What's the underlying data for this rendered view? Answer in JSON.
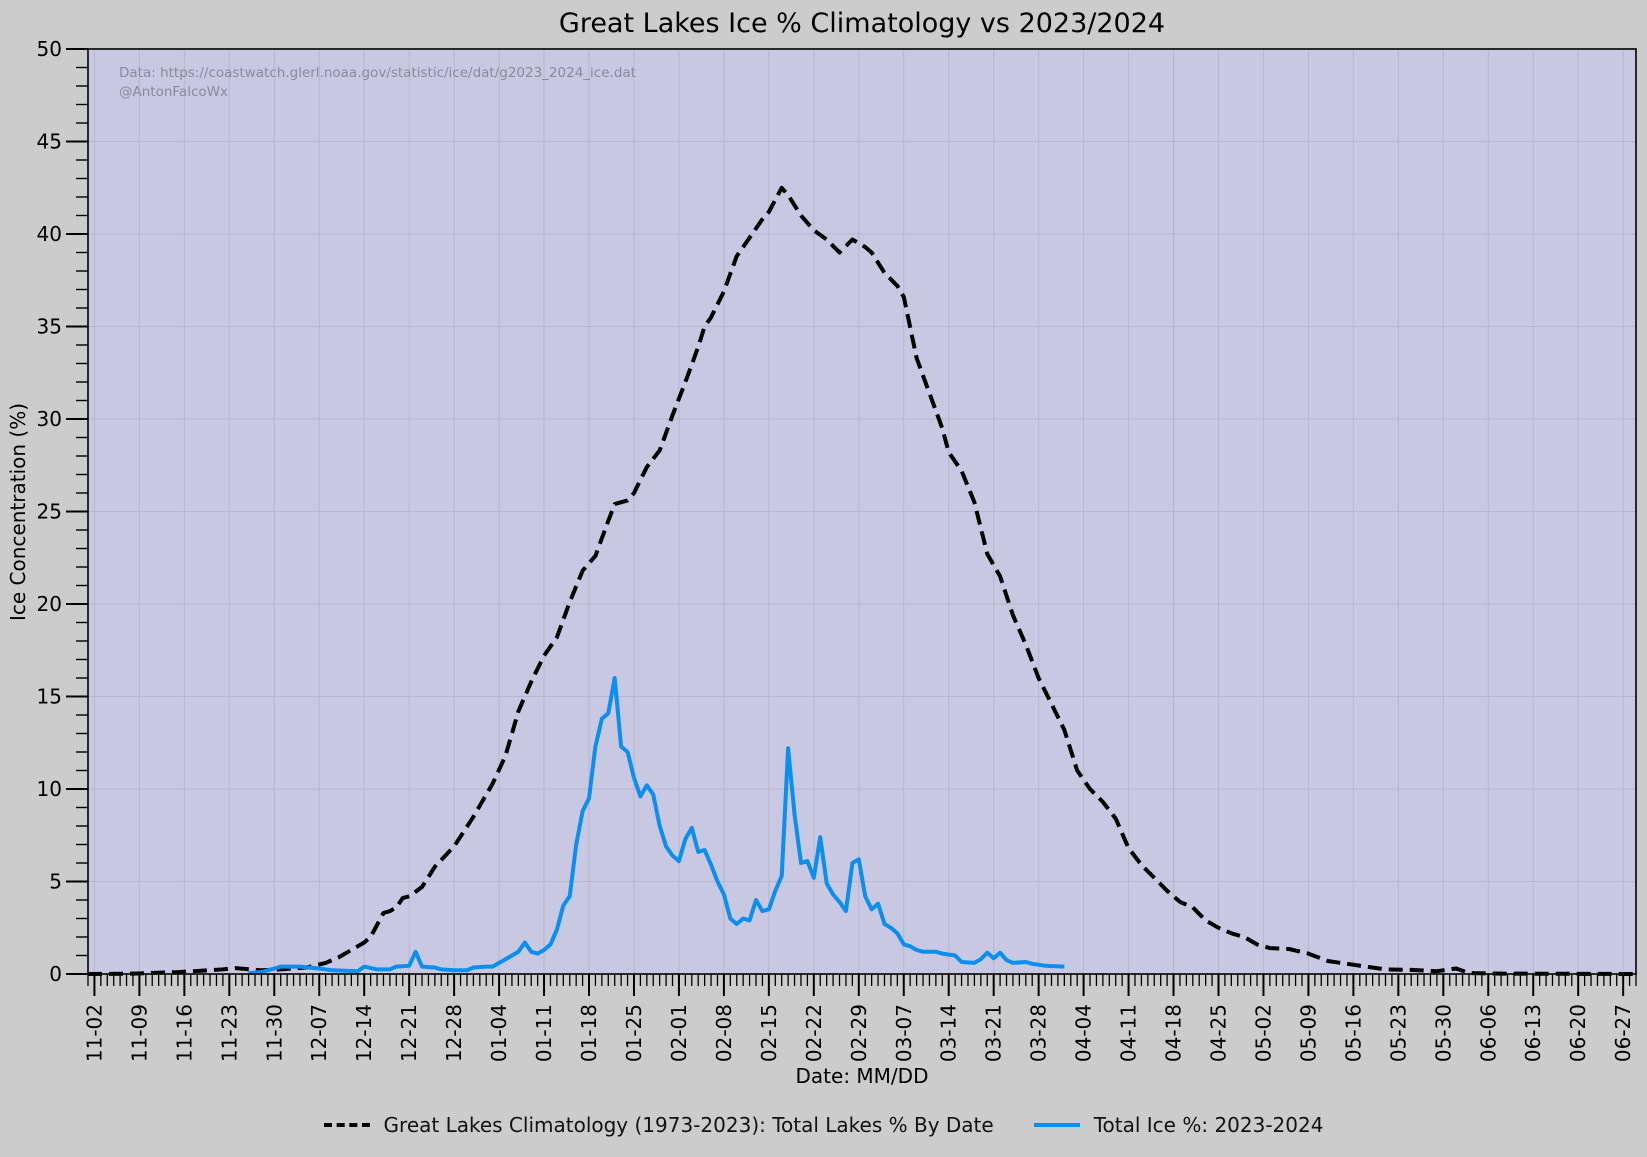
{
  "chart_data": {
    "type": "line",
    "title": "Great Lakes Ice % Climatology vs 2023/2024",
    "xlabel": "Date: MM/DD",
    "ylabel": "Ice Concentration (%)",
    "ylim": [
      0,
      50
    ],
    "yticks": [
      0,
      5,
      10,
      15,
      20,
      25,
      30,
      35,
      40,
      45,
      50
    ],
    "xlim": [
      "2023-11-01",
      "2024-06-29"
    ],
    "xticks": [
      "2023-11-02",
      "2023-11-09",
      "2023-11-16",
      "2023-11-23",
      "2023-11-30",
      "2023-12-07",
      "2023-12-14",
      "2023-12-21",
      "2023-12-28",
      "2024-01-04",
      "2024-01-11",
      "2024-01-18",
      "2024-01-25",
      "2024-02-01",
      "2024-02-08",
      "2024-02-15",
      "2024-02-22",
      "2024-02-29",
      "2024-03-07",
      "2024-03-14",
      "2024-03-21",
      "2024-03-28",
      "2024-04-04",
      "2024-04-11",
      "2024-04-18",
      "2024-04-25",
      "2024-05-02",
      "2024-05-09",
      "2024-05-16",
      "2024-05-23",
      "2024-05-30",
      "2024-06-06",
      "2024-06-13",
      "2024-06-20",
      "2024-06-27"
    ],
    "xtick_labels": [
      "11-02",
      "11-09",
      "11-16",
      "11-23",
      "11-30",
      "12-07",
      "12-14",
      "12-21",
      "12-28",
      "01-04",
      "01-11",
      "01-18",
      "01-25",
      "02-01",
      "02-08",
      "02-15",
      "02-22",
      "02-29",
      "03-07",
      "03-14",
      "03-21",
      "03-28",
      "04-04",
      "04-11",
      "04-18",
      "04-25",
      "05-02",
      "05-09",
      "05-16",
      "05-23",
      "05-30",
      "06-06",
      "06-13",
      "06-20",
      "06-27"
    ],
    "grid": true,
    "legend_position": "bottom",
    "annotation": [
      "Data: https://coastwatch.glerl.noaa.gov/statistic/ice/dat/g2023_2024_ice.dat",
      "@AntonFalcoWx"
    ],
    "series": [
      {
        "name": "Great Lakes Climatology (1973-2023): Total Lakes % By Date",
        "style": "dashed",
        "color": "#000000",
        "points": [
          [
            "2023-11-01",
            0
          ],
          [
            "2023-11-08",
            0.02
          ],
          [
            "2023-11-15",
            0.1
          ],
          [
            "2023-11-22",
            0.25
          ],
          [
            "2023-11-24",
            0.32
          ],
          [
            "2023-11-28",
            0.2
          ],
          [
            "2023-12-01",
            0.25
          ],
          [
            "2023-12-05",
            0.35
          ],
          [
            "2023-12-08",
            0.6
          ],
          [
            "2023-12-10",
            0.9
          ],
          [
            "2023-12-12",
            1.3
          ],
          [
            "2023-12-14",
            1.7
          ],
          [
            "2023-12-15",
            2.0
          ],
          [
            "2023-12-17",
            3.3
          ],
          [
            "2023-12-18",
            3.4
          ],
          [
            "2023-12-19",
            3.6
          ],
          [
            "2023-12-20",
            4.1
          ],
          [
            "2023-12-21",
            4.2
          ],
          [
            "2023-12-23",
            4.7
          ],
          [
            "2023-12-25",
            5.8
          ],
          [
            "2023-12-28",
            6.9
          ],
          [
            "2023-12-31",
            8.5
          ],
          [
            "2024-01-03",
            10.3
          ],
          [
            "2024-01-05",
            11.8
          ],
          [
            "2024-01-07",
            14.2
          ],
          [
            "2024-01-09",
            15.8
          ],
          [
            "2024-01-11",
            17.2
          ],
          [
            "2024-01-13",
            18.2
          ],
          [
            "2024-01-15",
            20.1
          ],
          [
            "2024-01-17",
            21.8
          ],
          [
            "2024-01-19",
            22.6
          ],
          [
            "2024-01-21",
            24.5
          ],
          [
            "2024-01-22",
            25.4
          ],
          [
            "2024-01-24",
            25.6
          ],
          [
            "2024-01-25",
            26.0
          ],
          [
            "2024-01-27",
            27.4
          ],
          [
            "2024-01-29",
            28.3
          ],
          [
            "2024-01-31",
            30.2
          ],
          [
            "2024-02-02",
            32.0
          ],
          [
            "2024-02-04",
            33.9
          ],
          [
            "2024-02-05",
            35.0
          ],
          [
            "2024-02-06",
            35.5
          ],
          [
            "2024-02-08",
            36.9
          ],
          [
            "2024-02-10",
            38.8
          ],
          [
            "2024-02-12",
            39.8
          ],
          [
            "2024-02-14",
            40.8
          ],
          [
            "2024-02-15",
            41.2
          ],
          [
            "2024-02-17",
            42.5
          ],
          [
            "2024-02-18",
            42.1
          ],
          [
            "2024-02-20",
            41.0
          ],
          [
            "2024-02-22",
            40.2
          ],
          [
            "2024-02-24",
            39.7
          ],
          [
            "2024-02-26",
            39.0
          ],
          [
            "2024-02-28",
            39.7
          ],
          [
            "2024-03-01",
            39.3
          ],
          [
            "2024-03-02",
            39.0
          ],
          [
            "2024-03-04",
            37.9
          ],
          [
            "2024-03-06",
            37.2
          ],
          [
            "2024-03-07",
            36.6
          ],
          [
            "2024-03-09",
            33.3
          ],
          [
            "2024-03-11",
            31.4
          ],
          [
            "2024-03-13",
            29.5
          ],
          [
            "2024-03-14",
            28.2
          ],
          [
            "2024-03-16",
            27.2
          ],
          [
            "2024-03-18",
            25.5
          ],
          [
            "2024-03-20",
            22.7
          ],
          [
            "2024-03-22",
            21.5
          ],
          [
            "2024-03-24",
            19.4
          ],
          [
            "2024-03-26",
            17.8
          ],
          [
            "2024-03-28",
            16.0
          ],
          [
            "2024-03-30",
            14.6
          ],
          [
            "2024-04-01",
            13.2
          ],
          [
            "2024-04-03",
            11.0
          ],
          [
            "2024-04-05",
            10.0
          ],
          [
            "2024-04-07",
            9.3
          ],
          [
            "2024-04-09",
            8.4
          ],
          [
            "2024-04-11",
            6.8
          ],
          [
            "2024-04-13",
            5.9
          ],
          [
            "2024-04-15",
            5.2
          ],
          [
            "2024-04-17",
            4.5
          ],
          [
            "2024-04-19",
            3.9
          ],
          [
            "2024-04-21",
            3.6
          ],
          [
            "2024-04-23",
            2.9
          ],
          [
            "2024-04-25",
            2.5
          ],
          [
            "2024-04-27",
            2.2
          ],
          [
            "2024-04-29",
            2.0
          ],
          [
            "2024-05-01",
            1.6
          ],
          [
            "2024-05-03",
            1.4
          ],
          [
            "2024-05-06",
            1.35
          ],
          [
            "2024-05-09",
            1.1
          ],
          [
            "2024-05-12",
            0.7
          ],
          [
            "2024-05-15",
            0.55
          ],
          [
            "2024-05-18",
            0.4
          ],
          [
            "2024-05-21",
            0.25
          ],
          [
            "2024-05-25",
            0.22
          ],
          [
            "2024-05-29",
            0.15
          ],
          [
            "2024-06-01",
            0.3
          ],
          [
            "2024-06-03",
            0.05
          ],
          [
            "2024-06-08",
            0.02
          ],
          [
            "2024-06-29",
            0
          ]
        ]
      },
      {
        "name": "Total Ice %: 2023-2024",
        "style": "solid",
        "color": "#0a8ff0",
        "points": [
          [
            "2023-11-26",
            0.05
          ],
          [
            "2023-11-28",
            0.1
          ],
          [
            "2023-11-30",
            0.3
          ],
          [
            "2023-12-01",
            0.4
          ],
          [
            "2023-12-04",
            0.4
          ],
          [
            "2023-12-07",
            0.3
          ],
          [
            "2023-12-09",
            0.2
          ],
          [
            "2023-12-13",
            0.15
          ],
          [
            "2023-12-14",
            0.4
          ],
          [
            "2023-12-16",
            0.25
          ],
          [
            "2023-12-18",
            0.25
          ],
          [
            "2023-12-19",
            0.4
          ],
          [
            "2023-12-21",
            0.45
          ],
          [
            "2023-12-22",
            1.2
          ],
          [
            "2023-12-23",
            0.4
          ],
          [
            "2023-12-25",
            0.35
          ],
          [
            "2023-12-26",
            0.25
          ],
          [
            "2023-12-28",
            0.2
          ],
          [
            "2023-12-30",
            0.2
          ],
          [
            "2023-12-31",
            0.35
          ],
          [
            "2024-01-02",
            0.4
          ],
          [
            "2024-01-03",
            0.4
          ],
          [
            "2024-01-06",
            1.0
          ],
          [
            "2024-01-07",
            1.2
          ],
          [
            "2024-01-08",
            1.7
          ],
          [
            "2024-01-09",
            1.2
          ],
          [
            "2024-01-10",
            1.1
          ],
          [
            "2024-01-11",
            1.3
          ],
          [
            "2024-01-12",
            1.6
          ],
          [
            "2024-01-13",
            2.4
          ],
          [
            "2024-01-14",
            3.7
          ],
          [
            "2024-01-15",
            4.2
          ],
          [
            "2024-01-16",
            7.0
          ],
          [
            "2024-01-17",
            8.8
          ],
          [
            "2024-01-18",
            9.5
          ],
          [
            "2024-01-19",
            12.3
          ],
          [
            "2024-01-20",
            13.8
          ],
          [
            "2024-01-21",
            14.1
          ],
          [
            "2024-01-22",
            16.0
          ],
          [
            "2024-01-23",
            12.3
          ],
          [
            "2024-01-24",
            12.0
          ],
          [
            "2024-01-25",
            10.6
          ],
          [
            "2024-01-26",
            9.6
          ],
          [
            "2024-01-27",
            10.2
          ],
          [
            "2024-01-28",
            9.7
          ],
          [
            "2024-01-29",
            8.0
          ],
          [
            "2024-01-30",
            6.9
          ],
          [
            "2024-01-31",
            6.4
          ],
          [
            "2024-02-01",
            6.1
          ],
          [
            "2024-02-02",
            7.3
          ],
          [
            "2024-02-03",
            7.9
          ],
          [
            "2024-02-04",
            6.6
          ],
          [
            "2024-02-05",
            6.7
          ],
          [
            "2024-02-06",
            5.9
          ],
          [
            "2024-02-07",
            5.0
          ],
          [
            "2024-02-08",
            4.3
          ],
          [
            "2024-02-09",
            3.0
          ],
          [
            "2024-02-10",
            2.7
          ],
          [
            "2024-02-11",
            3.0
          ],
          [
            "2024-02-12",
            2.9
          ],
          [
            "2024-02-13",
            4.0
          ],
          [
            "2024-02-14",
            3.4
          ],
          [
            "2024-02-15",
            3.5
          ],
          [
            "2024-02-16",
            4.5
          ],
          [
            "2024-02-17",
            5.3
          ],
          [
            "2024-02-18",
            12.2
          ],
          [
            "2024-02-19",
            8.6
          ],
          [
            "2024-02-20",
            6.0
          ],
          [
            "2024-02-21",
            6.1
          ],
          [
            "2024-02-22",
            5.2
          ],
          [
            "2024-02-23",
            7.4
          ],
          [
            "2024-02-24",
            4.9
          ],
          [
            "2024-02-25",
            4.3
          ],
          [
            "2024-02-26",
            3.9
          ],
          [
            "2024-02-27",
            3.4
          ],
          [
            "2024-02-28",
            6.0
          ],
          [
            "2024-02-29",
            6.2
          ],
          [
            "2024-03-01",
            4.2
          ],
          [
            "2024-03-02",
            3.5
          ],
          [
            "2024-03-03",
            3.8
          ],
          [
            "2024-03-04",
            2.7
          ],
          [
            "2024-03-05",
            2.5
          ],
          [
            "2024-03-06",
            2.2
          ],
          [
            "2024-03-07",
            1.6
          ],
          [
            "2024-03-08",
            1.5
          ],
          [
            "2024-03-09",
            1.3
          ],
          [
            "2024-03-10",
            1.2
          ],
          [
            "2024-03-12",
            1.2
          ],
          [
            "2024-03-13",
            1.1
          ],
          [
            "2024-03-15",
            1.0
          ],
          [
            "2024-03-16",
            0.65
          ],
          [
            "2024-03-18",
            0.6
          ],
          [
            "2024-03-19",
            0.8
          ],
          [
            "2024-03-20",
            1.15
          ],
          [
            "2024-03-21",
            0.85
          ],
          [
            "2024-03-22",
            1.15
          ],
          [
            "2024-03-23",
            0.75
          ],
          [
            "2024-03-24",
            0.6
          ],
          [
            "2024-03-26",
            0.65
          ],
          [
            "2024-03-27",
            0.55
          ],
          [
            "2024-03-29",
            0.45
          ],
          [
            "2024-04-01",
            0.4
          ]
        ]
      }
    ]
  }
}
